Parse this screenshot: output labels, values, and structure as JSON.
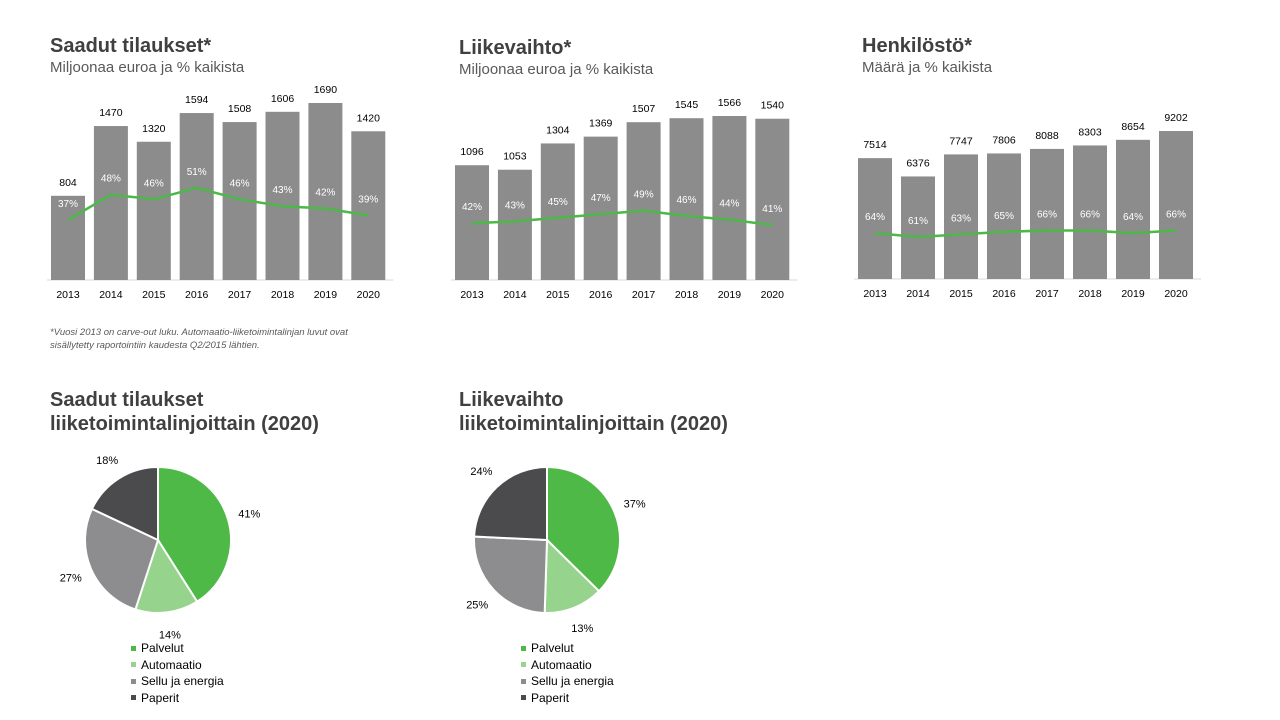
{
  "colors": {
    "bar": "#8c8c8c",
    "line": "#4cb848",
    "axis": "#d9d9d9",
    "palvelut": "#4fb947",
    "automaatio": "#96d38c",
    "sellu": "#8d8d8f",
    "paperit": "#4b4b4d"
  },
  "bar_charts": [
    {
      "title": "Saadut tilaukset*",
      "subtitle": "Miljoonaa euroa ja % kaikista"
    },
    {
      "title": "Liikevaihto*",
      "subtitle": "Miljoonaa euroa ja % kaikista"
    },
    {
      "title": "Henkilöstö*",
      "subtitle": "Määrä ja % kaikista"
    }
  ],
  "footnote": "*Vuosi 2013 on carve-out luku. Automaatio-liiketoimintalinjan luvut ovat sisällytetty raportointiin kaudesta Q2/2015 lähtien.",
  "pie_charts": [
    {
      "title_line1": "Saadut tilaukset",
      "title_line2": "liiketoimintalinjoittain  (2020)"
    },
    {
      "title_line1": "Liikevaihto",
      "title_line2": "liiketoimintalinjoittain  (2020)"
    }
  ],
  "chart_data": [
    {
      "type": "bar",
      "title": "Saadut tilaukset*",
      "subtitle": "Miljoonaa euroa ja % kaikista",
      "categories": [
        "2013",
        "2014",
        "2015",
        "2016",
        "2017",
        "2018",
        "2019",
        "2020"
      ],
      "values": [
        804,
        1470,
        1320,
        1594,
        1508,
        1606,
        1690,
        1420
      ],
      "line_values": [
        37,
        48,
        46,
        51,
        46,
        43,
        42,
        39
      ],
      "line_labels": [
        "37%",
        "48%",
        "46%",
        "51%",
        "46%",
        "43%",
        "42%",
        "39%"
      ],
      "ylim": [
        0,
        1690
      ]
    },
    {
      "type": "bar",
      "title": "Liikevaihto*",
      "subtitle": "Miljoonaa euroa ja % kaikista",
      "categories": [
        "2013",
        "2014",
        "2015",
        "2016",
        "2017",
        "2018",
        "2019",
        "2020"
      ],
      "values": [
        1096,
        1053,
        1304,
        1369,
        1507,
        1545,
        1566,
        1540
      ],
      "line_values": [
        42,
        43,
        45,
        47,
        49,
        46,
        44,
        41
      ],
      "line_labels": [
        "42%",
        "43%",
        "45%",
        "47%",
        "49%",
        "46%",
        "44%",
        "41%"
      ],
      "ylim": [
        0,
        1566
      ]
    },
    {
      "type": "bar",
      "title": "Henkilöstö*",
      "subtitle": "Määrä ja % kaikista",
      "categories": [
        "2013",
        "2014",
        "2015",
        "2016",
        "2017",
        "2018",
        "2019",
        "2020"
      ],
      "values": [
        7514,
        6376,
        7747,
        7806,
        8088,
        8303,
        8654,
        9202
      ],
      "line_values": [
        64,
        61,
        63,
        65,
        66,
        66,
        64,
        66
      ],
      "line_labels": [
        "64%",
        "61%",
        "63%",
        "65%",
        "66%",
        "66%",
        "64%",
        "66%"
      ],
      "ylim": [
        0,
        9202
      ]
    },
    {
      "type": "pie",
      "title": "Saadut tilaukset liiketoimintalinjoittain  (2020)",
      "categories": [
        "Palvelut",
        "Automaatio",
        "Sellu ja energia",
        "Paperit"
      ],
      "values": [
        41,
        14,
        27,
        18
      ],
      "labels": [
        "41%",
        "14%",
        "27%",
        "18%"
      ]
    },
    {
      "type": "pie",
      "title": "Liikevaihto liiketoimintalinjoittain  (2020)",
      "categories": [
        "Palvelut",
        "Automaatio",
        "Sellu ja energia",
        "Paperit"
      ],
      "values": [
        37,
        13,
        25,
        24
      ],
      "labels": [
        "37%",
        "13%",
        "25%",
        "24%"
      ]
    }
  ]
}
